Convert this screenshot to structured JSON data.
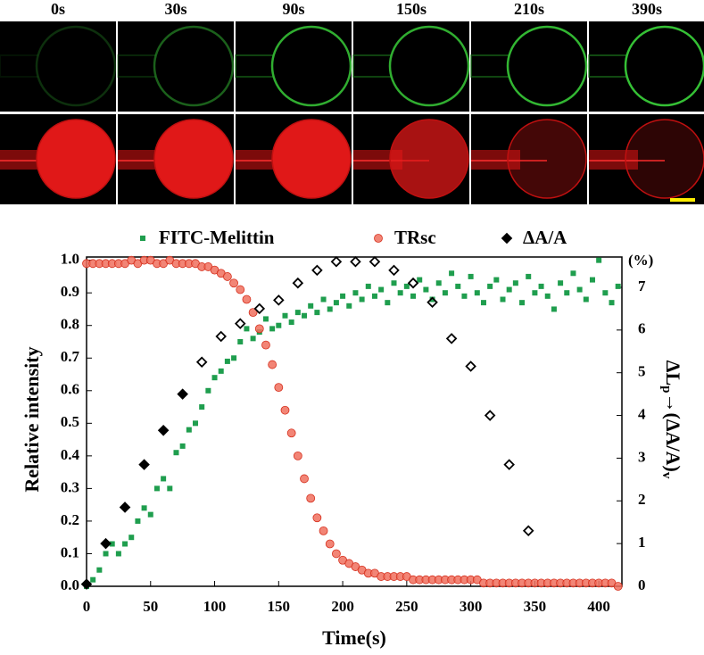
{
  "panels": {
    "time_labels": [
      "0s",
      "30s",
      "90s",
      "150s",
      "210s",
      "390s"
    ]
  },
  "chart_data": {
    "type": "scatter",
    "x_label": "Time(s)",
    "y_label": "Relative intensity",
    "y2_label": [
      "ΔL",
      "p",
      "→(ΔA/A)",
      "v"
    ],
    "y2_unit": "(%)",
    "xlim": [
      0,
      418
    ],
    "xticks": [
      0,
      50,
      100,
      150,
      200,
      250,
      300,
      350,
      400
    ],
    "ylim": [
      0,
      1.01
    ],
    "yticks": [
      {
        "value": 0,
        "label": "0.0"
      },
      0.1,
      0.2,
      0.3,
      0.4,
      0.5,
      0.6,
      0.7,
      0.8,
      0.9,
      {
        "value": 1,
        "label": "1.0"
      }
    ],
    "y2lim": [
      0,
      7.71
    ],
    "y2ticks": [
      0,
      1,
      2,
      3,
      4,
      5,
      6,
      7
    ],
    "legend": "top",
    "x": [
      0,
      5,
      10,
      15,
      20,
      25,
      30,
      35,
      40,
      45,
      50,
      55,
      60,
      65,
      70,
      75,
      80,
      85,
      90,
      95,
      100,
      105,
      110,
      115,
      120,
      125,
      130,
      135,
      140,
      145,
      150,
      155,
      160,
      165,
      170,
      175,
      180,
      185,
      190,
      195,
      200,
      205,
      210,
      215,
      220,
      225,
      230,
      235,
      240,
      245,
      250,
      255,
      260,
      265,
      270,
      275,
      280,
      285,
      290,
      295,
      300,
      305,
      310,
      315,
      320,
      325,
      330,
      335,
      340,
      345,
      350,
      355,
      360,
      365,
      370,
      375,
      380,
      385,
      390,
      395,
      400,
      405,
      410,
      415
    ],
    "series": [
      {
        "name": "FITC-Melittin",
        "marker": "square",
        "color": "#1f9e4e",
        "values": [
          0.0,
          0.02,
          0.05,
          0.1,
          0.13,
          0.1,
          0.13,
          0.15,
          0.2,
          0.24,
          0.22,
          0.3,
          0.33,
          0.3,
          0.41,
          0.43,
          0.48,
          0.5,
          0.55,
          0.6,
          0.64,
          0.66,
          0.69,
          0.7,
          0.75,
          0.79,
          0.76,
          0.78,
          0.82,
          0.79,
          0.8,
          0.83,
          0.81,
          0.84,
          0.83,
          0.86,
          0.84,
          0.88,
          0.85,
          0.87,
          0.89,
          0.86,
          0.9,
          0.88,
          0.92,
          0.89,
          0.91,
          0.87,
          0.93,
          0.9,
          0.92,
          0.89,
          0.94,
          0.91,
          0.88,
          0.93,
          0.9,
          0.96,
          0.92,
          0.89,
          0.95,
          0.9,
          0.87,
          0.92,
          0.94,
          0.88,
          0.91,
          0.93,
          0.87,
          0.95,
          0.9,
          0.92,
          0.89,
          0.85,
          0.93,
          0.9,
          0.96,
          0.91,
          0.88,
          0.94,
          1.0,
          0.9,
          0.87,
          0.92
        ]
      },
      {
        "name": "TRsc",
        "marker": "circle",
        "color": "#f0705e",
        "values": [
          0.99,
          0.99,
          0.99,
          0.99,
          0.99,
          0.99,
          0.99,
          1.0,
          0.99,
          1.0,
          1.0,
          0.99,
          0.99,
          1.0,
          0.99,
          0.99,
          0.99,
          0.99,
          0.98,
          0.98,
          0.97,
          0.96,
          0.95,
          0.93,
          0.91,
          0.88,
          0.84,
          0.79,
          0.74,
          0.68,
          0.61,
          0.54,
          0.47,
          0.4,
          0.33,
          0.27,
          0.21,
          0.17,
          0.13,
          0.1,
          0.08,
          0.07,
          0.06,
          0.05,
          0.04,
          0.04,
          0.03,
          0.03,
          0.03,
          0.03,
          0.03,
          0.02,
          0.02,
          0.02,
          0.02,
          0.02,
          0.02,
          0.02,
          0.02,
          0.02,
          0.02,
          0.02,
          0.01,
          0.01,
          0.01,
          0.01,
          0.01,
          0.01,
          0.01,
          0.01,
          0.01,
          0.01,
          0.01,
          0.01,
          0.01,
          0.01,
          0.01,
          0.01,
          0.01,
          0.01,
          0.01,
          0.01,
          0.01,
          0.0
        ]
      },
      {
        "name": "ΔA/A",
        "marker": "diamond",
        "color": "#000000",
        "axis": "y2",
        "x": [
          0,
          15,
          30,
          45,
          60,
          75,
          90,
          105,
          120,
          135,
          150,
          165,
          180,
          195,
          210,
          225,
          240,
          255,
          270,
          285,
          300,
          315,
          330,
          345
        ],
        "values": [
          0.05,
          1.0,
          1.85,
          2.85,
          3.65,
          4.5,
          5.25,
          5.85,
          6.15,
          6.5,
          6.7,
          7.1,
          7.4,
          7.6,
          7.6,
          7.6,
          7.4,
          7.1,
          6.65,
          5.8,
          5.15,
          4.0,
          2.85,
          1.3
        ],
        "marker_fill": [
          "#000000",
          "#000000",
          "#000000",
          "#000000",
          "#000000",
          "#000000",
          "none",
          "none",
          "none",
          "none",
          "none",
          "none",
          "none",
          "none",
          "none",
          "none",
          "none",
          "none",
          "none",
          "none",
          "none",
          "none",
          "none",
          "none"
        ]
      }
    ]
  }
}
